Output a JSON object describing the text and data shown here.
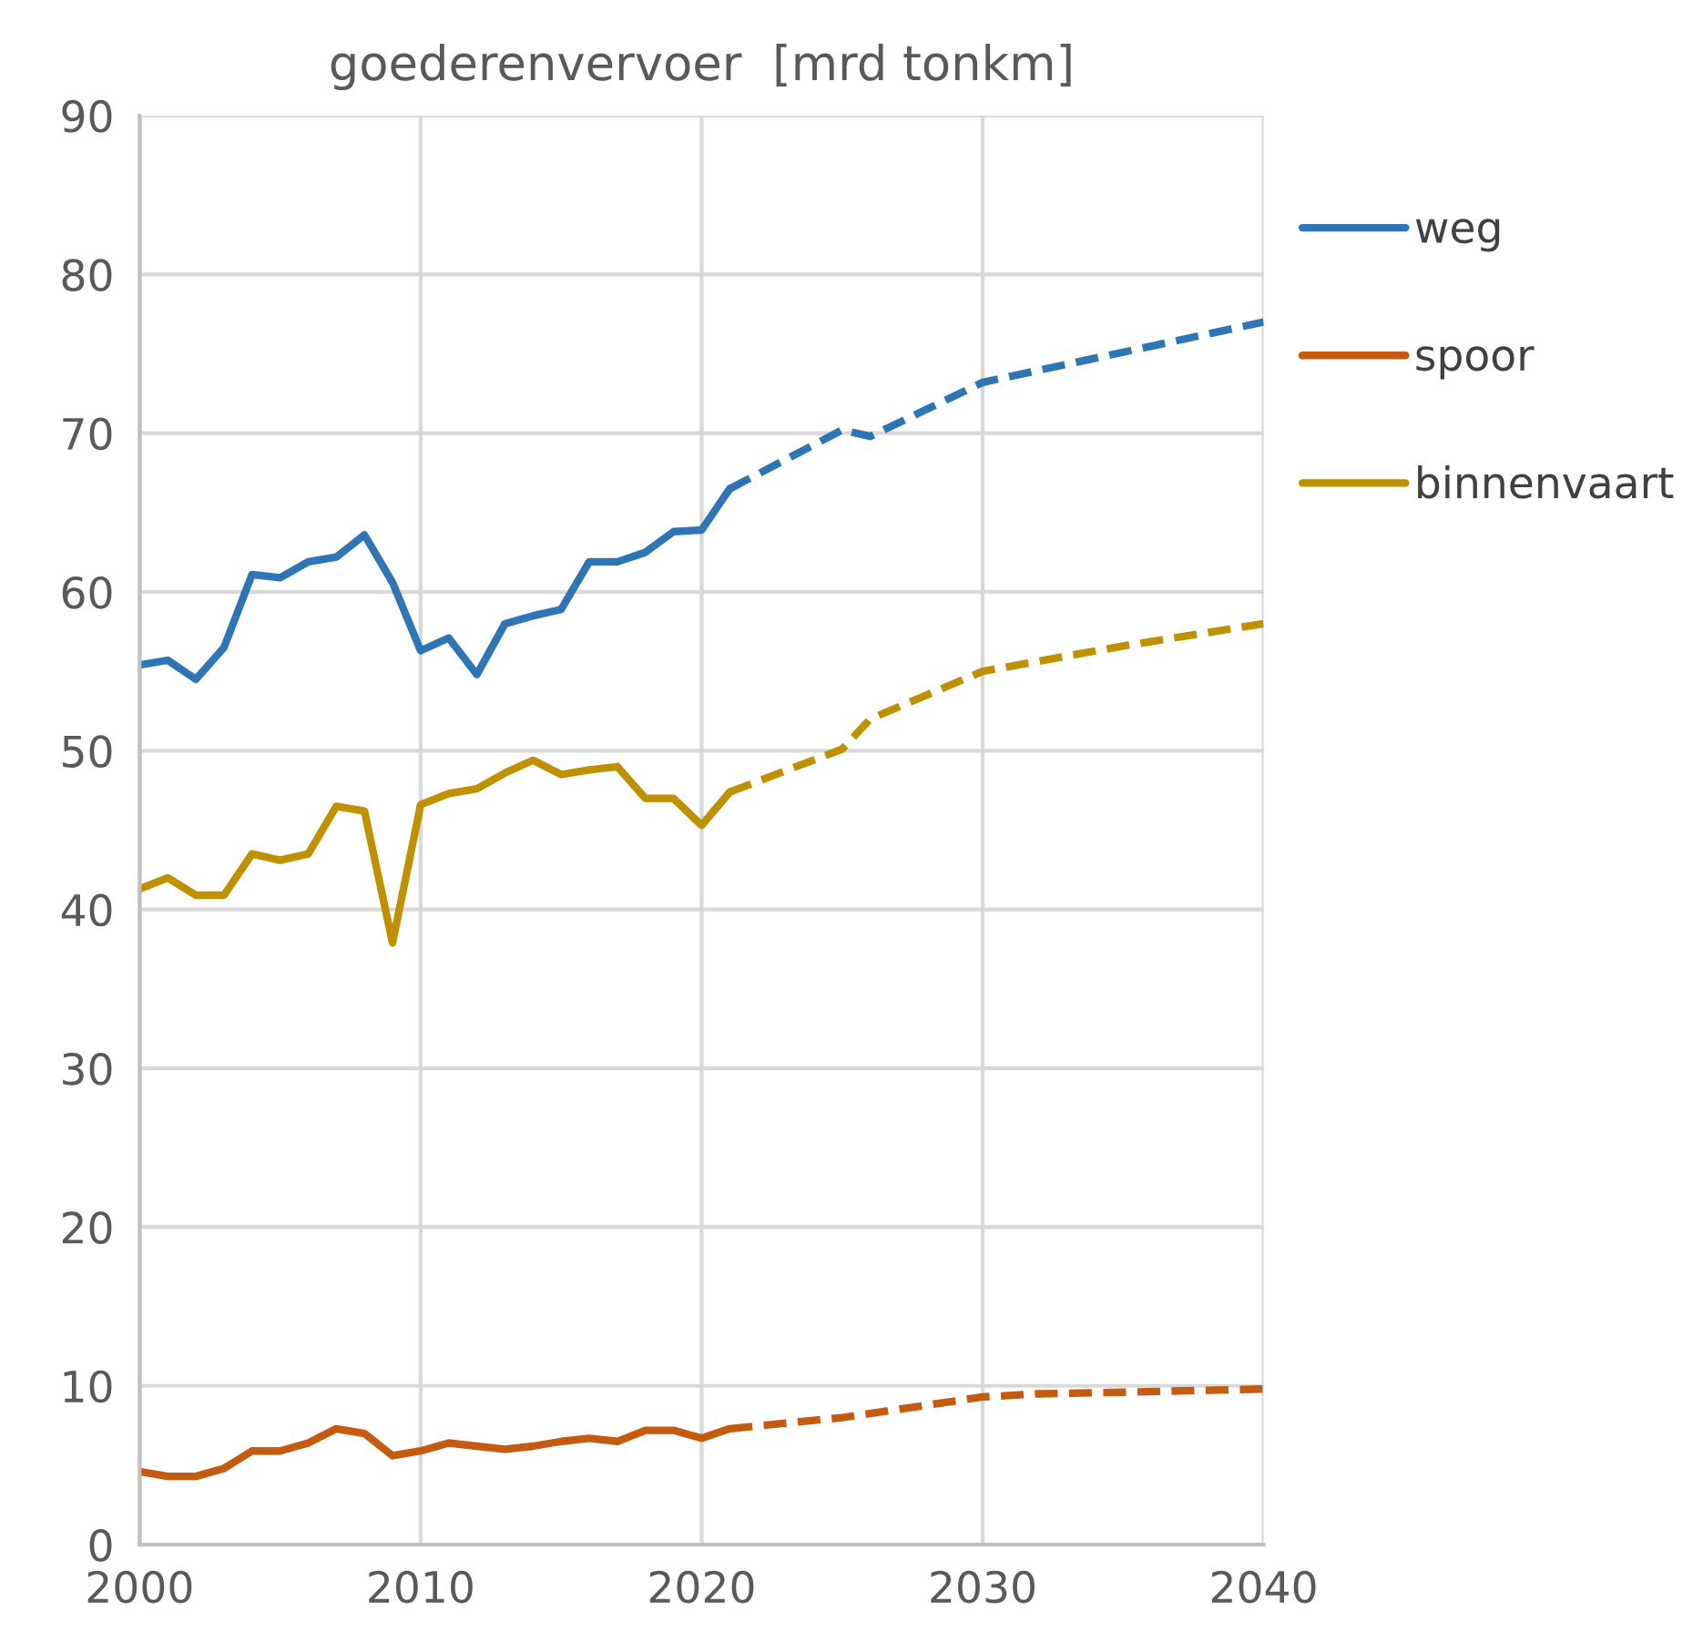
{
  "chart_data": {
    "type": "line",
    "title": "goederenvervoer  [mrd tonkm]",
    "xlim": [
      2000,
      2040
    ],
    "xticks": [
      2000,
      2010,
      2020,
      2030,
      2040
    ],
    "ylim": [
      0,
      90
    ],
    "yticks": [
      0,
      10,
      20,
      30,
      40,
      50,
      60,
      70,
      80,
      90
    ],
    "grid": true,
    "legend": "right",
    "series": [
      {
        "name": "weg",
        "color": "#2e75b6",
        "line_style": "solid",
        "x": [
          2000,
          2001,
          2002,
          2003,
          2004,
          2005,
          2006,
          2007,
          2008,
          2009,
          2010,
          2011,
          2012,
          2013,
          2014,
          2015,
          2016,
          2017,
          2018,
          2019,
          2020,
          2021
        ],
        "values": [
          55.4,
          55.7,
          54.5,
          56.5,
          61.1,
          60.9,
          61.9,
          62.2,
          63.6,
          60.6,
          56.3,
          57.1,
          54.8,
          58.0,
          58.5,
          58.9,
          61.9,
          61.9,
          62.5,
          63.8,
          63.9,
          66.5
        ]
      },
      {
        "name": "spoor",
        "color": "#c55a11",
        "line_style": "solid",
        "x": [
          2000,
          2001,
          2002,
          2003,
          2004,
          2005,
          2006,
          2007,
          2008,
          2009,
          2010,
          2011,
          2012,
          2013,
          2014,
          2015,
          2016,
          2017,
          2018,
          2019,
          2020,
          2021
        ],
        "values": [
          4.6,
          4.3,
          4.3,
          4.8,
          5.9,
          5.9,
          6.4,
          7.3,
          7.0,
          5.6,
          5.9,
          6.4,
          6.2,
          6.0,
          6.2,
          6.5,
          6.7,
          6.5,
          7.2,
          7.2,
          6.7,
          7.3
        ]
      },
      {
        "name": "binnenvaart",
        "color": "#bf9000",
        "line_style": "solid",
        "x": [
          2000,
          2001,
          2002,
          2003,
          2004,
          2005,
          2006,
          2007,
          2008,
          2009,
          2010,
          2011,
          2012,
          2013,
          2014,
          2015,
          2016,
          2017,
          2018,
          2019,
          2020,
          2021
        ],
        "values": [
          41.3,
          42.0,
          40.9,
          40.9,
          43.5,
          43.1,
          43.5,
          46.5,
          46.2,
          37.9,
          46.6,
          47.3,
          47.6,
          48.6,
          49.4,
          48.5,
          48.8,
          49.0,
          47.0,
          47.0,
          45.3,
          47.4
        ]
      },
      {
        "color": "#2e75b6",
        "line_style": "dashed",
        "x": [
          2021,
          2025,
          2026,
          2030,
          2035,
          2040
        ],
        "values": [
          66.5,
          70.2,
          69.8,
          73.2,
          75.1,
          77.0
        ]
      },
      {
        "color": "#c55a11",
        "line_style": "dashed",
        "x": [
          2021,
          2025,
          2030,
          2032,
          2035,
          2040
        ],
        "values": [
          7.3,
          8.0,
          9.3,
          9.5,
          9.6,
          9.8
        ]
      },
      {
        "color": "#bf9000",
        "line_style": "dashed",
        "x": [
          2021,
          2025,
          2026,
          2030,
          2035,
          2040
        ],
        "values": [
          47.4,
          50.1,
          52.0,
          55.0,
          56.6,
          58.0
        ]
      }
    ]
  }
}
